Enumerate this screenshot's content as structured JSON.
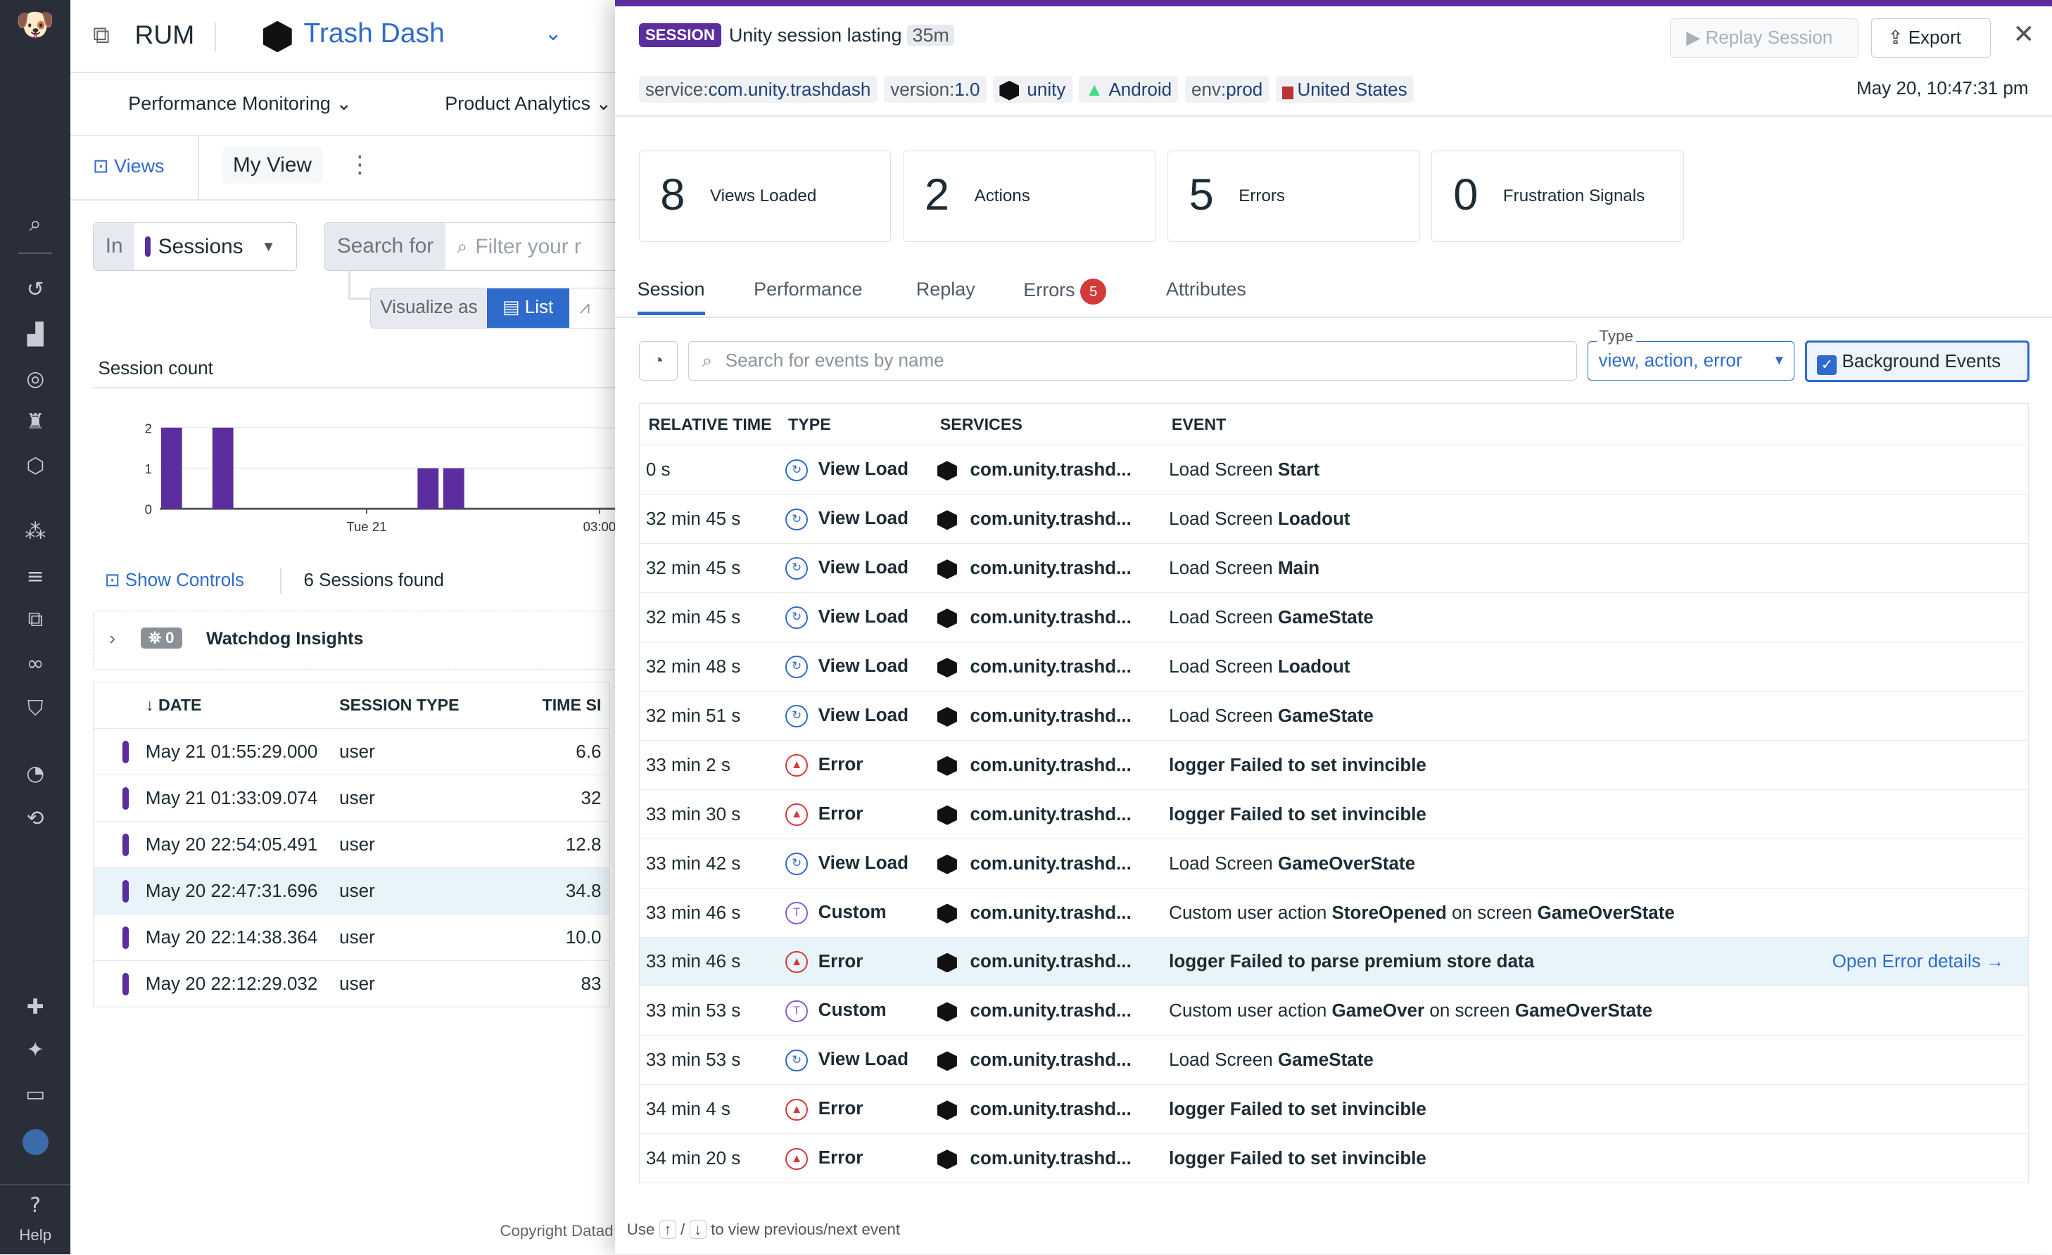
{
  "nav": {
    "help_label": "Help",
    "icons": [
      "datadog-logo-icon",
      "search-icon",
      "history-icon",
      "dashboard-icon",
      "monitor-icon",
      "watchdog-icon",
      "apm-icon",
      "integrations-icon",
      "logs-icon",
      "rum-icon",
      "synthetics-icon",
      "security-icon",
      "performance-icon",
      "ci-icon",
      "extensions-icon",
      "ai-icon",
      "notebooks-icon",
      "avatar",
      "help-icon"
    ]
  },
  "left": {
    "product": "RUM",
    "app_name": "Trash Dash",
    "menus": [
      "Performance Monitoring",
      "Product Analytics"
    ],
    "views_label": "Views",
    "view_name": "My View",
    "in_label": "In",
    "source": "Sessions",
    "search_for_label": "Search for",
    "search_placeholder": "Filter your r",
    "visualize_as_label": "Visualize as",
    "visualize_mode": "List",
    "chart_title": "Session count",
    "show_controls": "Show Controls",
    "sessions_found": "6 Sessions found",
    "watchdog_count": "0",
    "watchdog_label": "Watchdog Insights",
    "columns": [
      "DATE",
      "SESSION TYPE",
      "TIME SI"
    ],
    "rows": [
      {
        "date": "May 21 01:55:29.000",
        "type": "user",
        "time": "6.6"
      },
      {
        "date": "May 21 01:33:09.074",
        "type": "user",
        "time": "32"
      },
      {
        "date": "May 20 22:54:05.491",
        "type": "user",
        "time": "12.8"
      },
      {
        "date": "May 20 22:47:31.696",
        "type": "user",
        "time": "34.8"
      },
      {
        "date": "May 20 22:14:38.364",
        "type": "user",
        "time": "10.0"
      },
      {
        "date": "May 20 22:12:29.032",
        "type": "user",
        "time": "83"
      }
    ],
    "selected_row": 3,
    "copyright": "Copyright Datad"
  },
  "chart_data": {
    "type": "bar",
    "title": "Session count",
    "y_ticks": [
      "0",
      "1",
      "2"
    ],
    "ylim": [
      0,
      2
    ],
    "x_ticks": [
      "Tue 21",
      "03:00"
    ],
    "values": [
      2,
      0,
      2,
      0,
      0,
      0,
      0,
      0,
      0,
      0,
      1,
      1,
      0,
      0,
      0,
      0,
      0,
      0,
      0
    ],
    "color": "#5b2d9e"
  },
  "panel": {
    "badge": "SESSION",
    "title": "Unity session lasting",
    "duration": "35m",
    "replay_label": "Replay Session",
    "export_label": "Export",
    "tags": [
      {
        "k": "service:",
        "v": "com.unity.trashdash"
      },
      {
        "k": "version:",
        "v": "1.0"
      },
      {
        "k": "",
        "v": "unity"
      },
      {
        "k": "",
        "v": "Android"
      },
      {
        "k": "env:",
        "v": "prod"
      },
      {
        "k": "",
        "v": "United States"
      }
    ],
    "timestamp": "May 20, 10:47:31 pm",
    "stats": [
      {
        "n": "8",
        "l": "Views Loaded"
      },
      {
        "n": "2",
        "l": "Actions"
      },
      {
        "n": "5",
        "l": "Errors"
      },
      {
        "n": "0",
        "l": "Frustration Signals"
      }
    ],
    "tabs": [
      "Session",
      "Performance",
      "Replay",
      "Errors",
      "Attributes"
    ],
    "errors_badge": "5",
    "search_placeholder": "Search for events by name",
    "type_label": "Type",
    "type_value": "view, action, error",
    "background_label": "Background Events",
    "columns": [
      "RELATIVE TIME",
      "TYPE",
      "SERVICES",
      "EVENT"
    ],
    "open_error": "Open Error details",
    "hint": {
      "pre": "Use",
      "up": "↑",
      "sep": "/",
      "down": "↓",
      "post": "to view previous/next event"
    },
    "colors": {
      "view": "#2f6bcb",
      "error": "#d33a3a",
      "custom": "#8a5bd6",
      "accent": "#5b2d9e"
    },
    "events": [
      {
        "t": "0 s",
        "type": "View Load",
        "k": "view",
        "svc": "com.unity.trashd...",
        "ev": [
          [
            "Load Screen ",
            0
          ],
          [
            "Start",
            1
          ]
        ]
      },
      {
        "t": "32 min 45 s",
        "type": "View Load",
        "k": "view",
        "svc": "com.unity.trashd...",
        "ev": [
          [
            "Load Screen ",
            0
          ],
          [
            "Loadout",
            1
          ]
        ]
      },
      {
        "t": "32 min 45 s",
        "type": "View Load",
        "k": "view",
        "svc": "com.unity.trashd...",
        "ev": [
          [
            "Load Screen ",
            0
          ],
          [
            "Main",
            1
          ]
        ]
      },
      {
        "t": "32 min 45 s",
        "type": "View Load",
        "k": "view",
        "svc": "com.unity.trashd...",
        "ev": [
          [
            "Load Screen ",
            0
          ],
          [
            "GameState",
            1
          ]
        ]
      },
      {
        "t": "32 min 48 s",
        "type": "View Load",
        "k": "view",
        "svc": "com.unity.trashd...",
        "ev": [
          [
            "Load Screen ",
            0
          ],
          [
            "Loadout",
            1
          ]
        ]
      },
      {
        "t": "32 min 51 s",
        "type": "View Load",
        "k": "view",
        "svc": "com.unity.trashd...",
        "ev": [
          [
            "Load Screen ",
            0
          ],
          [
            "GameState",
            1
          ]
        ]
      },
      {
        "t": "33 min 2 s",
        "type": "Error",
        "k": "error",
        "svc": "com.unity.trashd...",
        "ev": [
          [
            "logger Failed to set invincible",
            1
          ]
        ]
      },
      {
        "t": "33 min 30 s",
        "type": "Error",
        "k": "error",
        "svc": "com.unity.trashd...",
        "ev": [
          [
            "logger Failed to set invincible",
            1
          ]
        ]
      },
      {
        "t": "33 min 42 s",
        "type": "View Load",
        "k": "view",
        "svc": "com.unity.trashd...",
        "ev": [
          [
            "Load Screen ",
            0
          ],
          [
            "GameOverState",
            1
          ]
        ]
      },
      {
        "t": "33 min 46 s",
        "type": "Custom",
        "k": "custom",
        "svc": "com.unity.trashd...",
        "ev": [
          [
            "Custom user action ",
            0
          ],
          [
            "StoreOpened",
            1
          ],
          [
            " on screen ",
            0
          ],
          [
            "GameOverState",
            1
          ]
        ]
      },
      {
        "t": "33 min 46 s",
        "type": "Error",
        "k": "error",
        "svc": "com.unity.trashd...",
        "ev": [
          [
            "logger Failed to parse premium store data",
            1
          ]
        ],
        "hl": true
      },
      {
        "t": "33 min 53 s",
        "type": "Custom",
        "k": "custom",
        "svc": "com.unity.trashd...",
        "ev": [
          [
            "Custom user action ",
            0
          ],
          [
            "GameOver",
            1
          ],
          [
            " on screen ",
            0
          ],
          [
            "GameOverState",
            1
          ]
        ]
      },
      {
        "t": "33 min 53 s",
        "type": "View Load",
        "k": "view",
        "svc": "com.unity.trashd...",
        "ev": [
          [
            "Load Screen ",
            0
          ],
          [
            "GameState",
            1
          ]
        ]
      },
      {
        "t": "34 min 4 s",
        "type": "Error",
        "k": "error",
        "svc": "com.unity.trashd...",
        "ev": [
          [
            "logger Failed to set invincible",
            1
          ]
        ]
      },
      {
        "t": "34 min 20 s",
        "type": "Error",
        "k": "error",
        "svc": "com.unity.trashd...",
        "ev": [
          [
            "logger Failed to set invincible",
            1
          ]
        ]
      }
    ]
  }
}
